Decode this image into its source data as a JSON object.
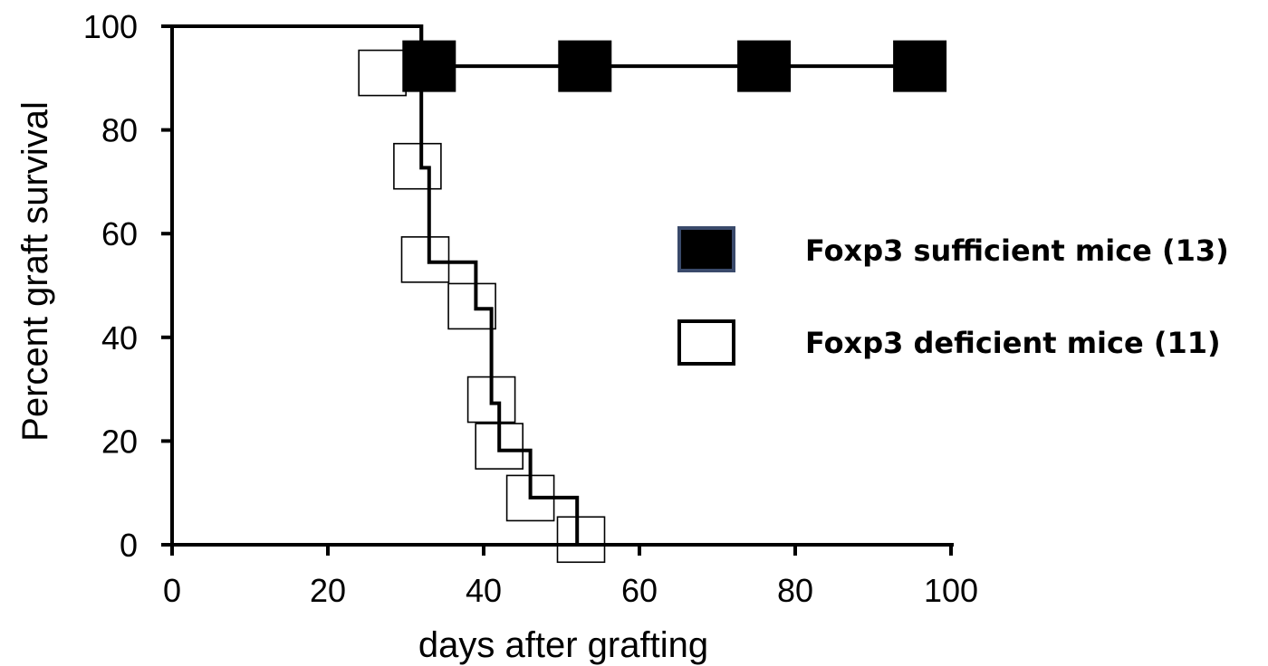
{
  "chart_data": {
    "type": "line",
    "title": "",
    "xlabel": "days after grafting",
    "ylabel": "Percent graft survival",
    "xlim": [
      0,
      100
    ],
    "ylim": [
      0,
      100
    ],
    "x_ticks": [
      "0",
      "20",
      "40",
      "60",
      "80",
      "100"
    ],
    "y_ticks": [
      "0",
      "20",
      "40",
      "60",
      "80",
      "100"
    ],
    "grid": false,
    "legend_position": "right",
    "series": [
      {
        "name": "Foxp3 sufficient mice (13)",
        "step_path": [
          [
            0,
            100
          ],
          [
            32,
            100
          ],
          [
            32,
            92.3
          ],
          [
            96,
            92.3
          ]
        ],
        "markers": [
          [
            33,
            92.3
          ],
          [
            53,
            92.3
          ],
          [
            76,
            92.3
          ],
          [
            96,
            92.3
          ]
        ],
        "marker_fill": "#000000",
        "legend_marker_stroke": "#3a4a6b"
      },
      {
        "name": "Foxp3 deficient mice (11)",
        "step_path": [
          [
            0,
            100
          ],
          [
            32,
            100
          ],
          [
            32,
            72.7
          ],
          [
            33,
            72.7
          ],
          [
            33,
            54.5
          ],
          [
            39,
            54.5
          ],
          [
            39,
            45.5
          ],
          [
            41,
            45.5
          ],
          [
            41,
            27.3
          ],
          [
            42,
            27.3
          ],
          [
            42,
            18.2
          ],
          [
            46,
            18.2
          ],
          [
            46,
            9.1
          ],
          [
            52,
            9.1
          ],
          [
            52,
            0
          ]
        ],
        "markers": [
          [
            27,
            91
          ],
          [
            31.5,
            73
          ],
          [
            32.5,
            55
          ],
          [
            38.5,
            46
          ],
          [
            41,
            28
          ],
          [
            42,
            19
          ],
          [
            46,
            9
          ],
          [
            52.5,
            1
          ]
        ],
        "marker_fill": "none",
        "legend_marker_stroke": "#000000"
      }
    ]
  }
}
